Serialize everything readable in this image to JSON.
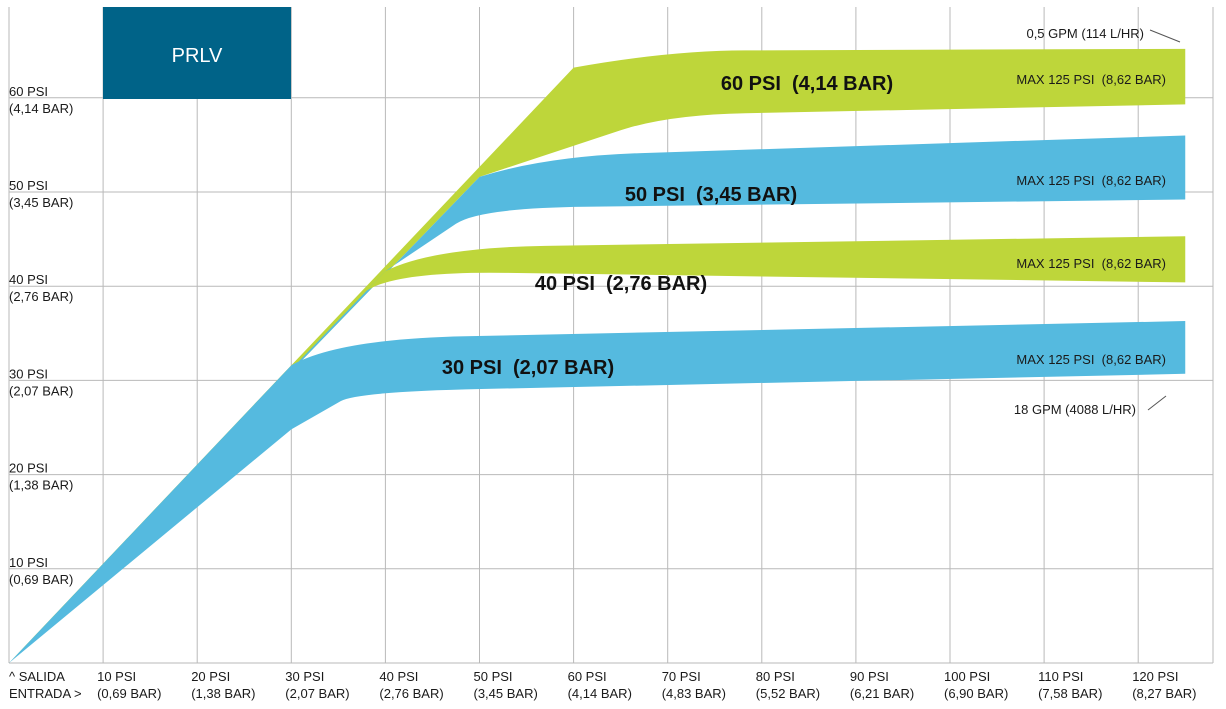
{
  "chart_data": {
    "type": "area",
    "title": "PRLV",
    "xlabel": "ENTRADA >",
    "ylabel": "^ SALIDA",
    "xlim": [
      0,
      125
    ],
    "ylim": [
      0,
      70
    ],
    "x_ticks": [
      {
        "value": 10,
        "line1": "10 PSI",
        "line2": "(0,69 BAR)"
      },
      {
        "value": 20,
        "line1": "20 PSI",
        "line2": "(1,38 BAR)"
      },
      {
        "value": 30,
        "line1": "30 PSI",
        "line2": "(2,07 BAR)"
      },
      {
        "value": 40,
        "line1": "40 PSI",
        "line2": "(2,76 BAR)"
      },
      {
        "value": 50,
        "line1": "50 PSI",
        "line2": "(3,45 BAR)"
      },
      {
        "value": 60,
        "line1": "60 PSI",
        "line2": "(4,14 BAR)"
      },
      {
        "value": 70,
        "line1": "70 PSI",
        "line2": "(4,83 BAR)"
      },
      {
        "value": 80,
        "line1": "80 PSI",
        "line2": "(5,52 BAR)"
      },
      {
        "value": 90,
        "line1": "90 PSI",
        "line2": "(6,21 BAR)"
      },
      {
        "value": 100,
        "line1": "100 PSI",
        "line2": "(6,90 BAR)"
      },
      {
        "value": 110,
        "line1": "110 PSI",
        "line2": "(7,58 BAR)"
      },
      {
        "value": 120,
        "line1": "120 PSI",
        "line2": "(8,27 BAR)"
      }
    ],
    "y_ticks": [
      {
        "value": 10,
        "line1": "10 PSI",
        "line2": "(0,69 BAR)"
      },
      {
        "value": 20,
        "line1": "20 PSI",
        "line2": "(1,38 BAR)"
      },
      {
        "value": 30,
        "line1": "30 PSI",
        "line2": "(2,07 BAR)"
      },
      {
        "value": 40,
        "line1": "40 PSI",
        "line2": "(2,76 BAR)"
      },
      {
        "value": 50,
        "line1": "50 PSI",
        "line2": "(3,45 BAR)"
      },
      {
        "value": 60,
        "line1": "60 PSI",
        "line2": "(4,14 BAR)"
      }
    ],
    "grid": true,
    "series": [
      {
        "name": "30 PSI  (2,07 BAR)",
        "max_label": "MAX 125 PSI  (8,62 BAR)",
        "color": "#55BADF",
        "upper": [
          [
            0,
            0
          ],
          [
            30,
            31.6
          ],
          [
            35,
            34.4
          ],
          [
            125,
            36.3
          ]
        ],
        "lower": [
          [
            0,
            0
          ],
          [
            30,
            24.8
          ],
          [
            37,
            28.8
          ],
          [
            125,
            30.7
          ]
        ]
      },
      {
        "name": "40 PSI  (2,76 BAR)",
        "max_label": "MAX 125 PSI  (8,62 BAR)",
        "color": "#BED63A",
        "upper": [
          [
            0,
            0
          ],
          [
            40,
            41.6
          ],
          [
            45,
            44.1
          ],
          [
            125,
            45.3
          ]
        ],
        "lower": [
          [
            0,
            0
          ],
          [
            30,
            31.6
          ],
          [
            40,
            41.6
          ],
          [
            125,
            40.4
          ]
        ]
      },
      {
        "name": "50 PSI  (3,45 BAR)",
        "max_label": "MAX 125 PSI  (8,62 BAR)",
        "color": "#55BADF",
        "upper": [
          [
            0,
            0
          ],
          [
            50,
            51.6
          ],
          [
            57,
            53.8
          ],
          [
            125,
            56.0
          ]
        ],
        "lower": [
          [
            0,
            0
          ],
          [
            40,
            41.6
          ],
          [
            50,
            48.3
          ],
          [
            125,
            49.2
          ]
        ]
      },
      {
        "name": "60 PSI  (4,14 BAR)",
        "max_label": "MAX 125 PSI  (8,62 BAR)",
        "color": "#BED63A",
        "upper": [
          [
            0,
            0
          ],
          [
            60,
            63.2
          ],
          [
            70,
            65.0
          ],
          [
            125,
            65.2
          ]
        ],
        "lower": [
          [
            0,
            0
          ],
          [
            50,
            51.6
          ],
          [
            70,
            58.2
          ],
          [
            125,
            59.3
          ]
        ]
      }
    ],
    "flow_labels": {
      "top": "0,5 GPM (114 L/HR)",
      "bottom": "18 GPM (4088 L/HR)"
    }
  },
  "colors": {
    "grid": "#b9b9b9",
    "title_bg": "#006388",
    "title_fg": "#ffffff",
    "text": "#1a1a1a"
  }
}
